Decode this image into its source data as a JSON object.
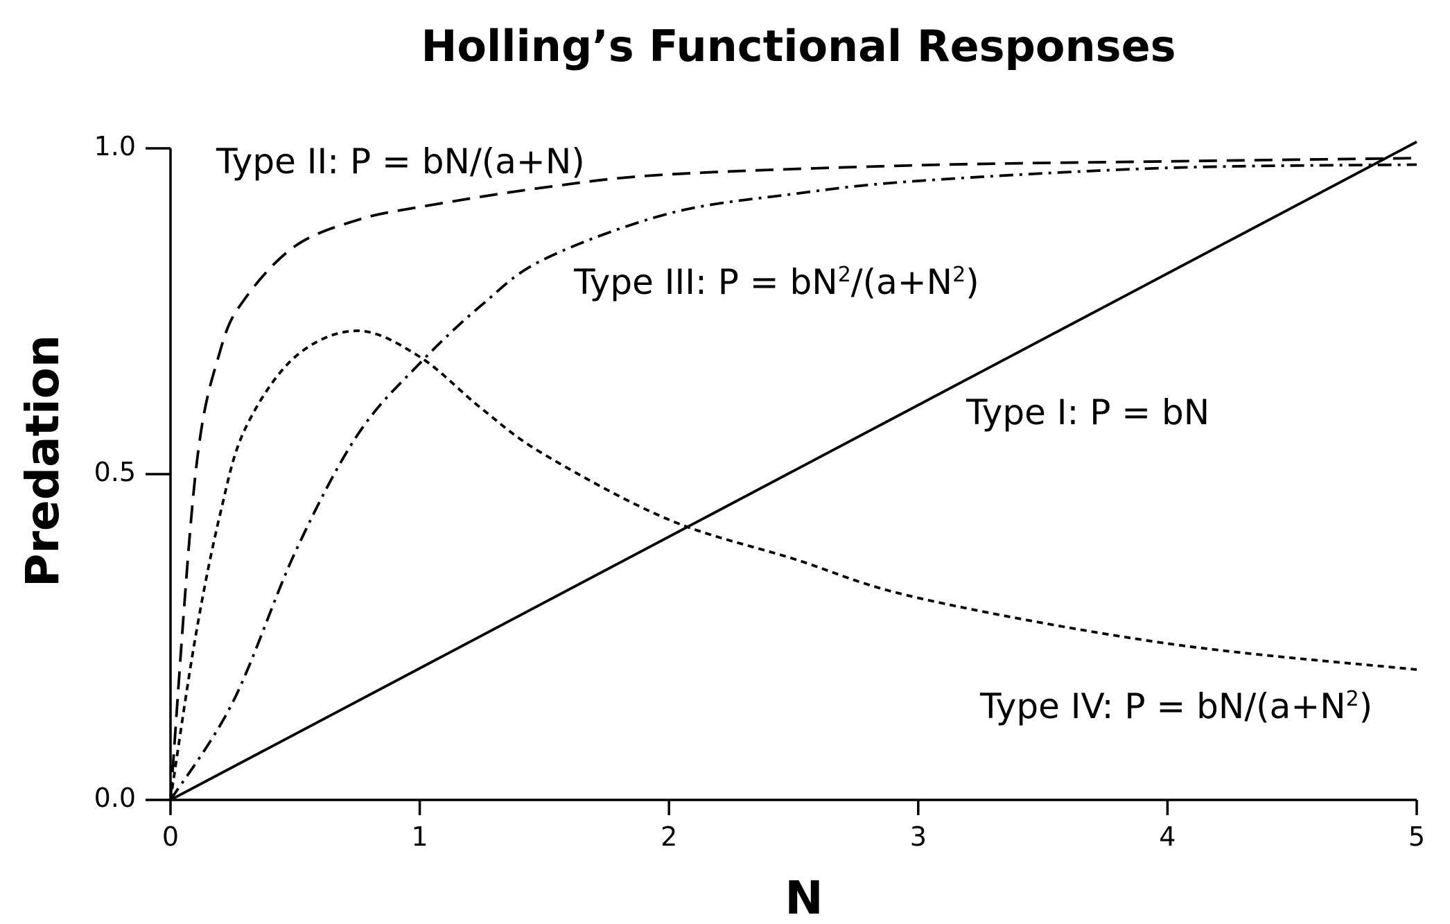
{
  "chart_data": {
    "type": "line",
    "title": "Holling’s Functional Responses",
    "xlabel": "N",
    "ylabel": "Predation",
    "xlim": [
      0,
      5
    ],
    "ylim": [
      0,
      1.0
    ],
    "x_ticks": [
      "0",
      "1",
      "2",
      "3",
      "4",
      "5"
    ],
    "y_ticks": [
      "0.0",
      "0.5",
      "1.0"
    ],
    "grid": false,
    "legend": "none",
    "series": [
      {
        "name": "Type I: P = bN",
        "style": "solid",
        "x": [
          0,
          5
        ],
        "y": [
          0,
          1.01
        ]
      },
      {
        "name": "Type II: P = bN/(a+N)",
        "style": "dashed",
        "x": [
          0,
          0.1,
          0.2,
          0.3,
          0.5,
          0.75,
          1.0,
          1.5,
          2.0,
          3.0,
          4.0,
          5.0
        ],
        "y": [
          0,
          0.5,
          0.69,
          0.77,
          0.85,
          0.89,
          0.91,
          0.94,
          0.96,
          0.974,
          0.98,
          0.985
        ]
      },
      {
        "name": "Type III: P = bN²/(a+N²)",
        "style": "dash-dot",
        "x": [
          0,
          0.25,
          0.5,
          0.75,
          1.0,
          1.25,
          1.5,
          2.0,
          2.5,
          3.0,
          4.0,
          5.0
        ],
        "y": [
          0,
          0.15,
          0.38,
          0.56,
          0.67,
          0.76,
          0.83,
          0.9,
          0.93,
          0.95,
          0.97,
          0.975
        ]
      },
      {
        "name": "Type IV: P = bN/(a+N²)",
        "style": "dotted",
        "x": [
          0,
          0.1,
          0.2,
          0.3,
          0.5,
          0.75,
          1.0,
          1.25,
          1.5,
          2.0,
          2.5,
          3.0,
          4.0,
          5.0
        ],
        "y": [
          0,
          0.25,
          0.44,
          0.57,
          0.68,
          0.72,
          0.68,
          0.6,
          0.53,
          0.43,
          0.37,
          0.31,
          0.24,
          0.2
        ]
      }
    ],
    "annotations": [
      {
        "text_main": "Type II: P = bN/(a+N)",
        "sup": []
      },
      {
        "text_main": "Type III: P = bN",
        "sup_1": "2",
        "mid": "/(a+N",
        "sup_2": "2",
        "end": ")"
      },
      {
        "text_main": "Type I: P = bN"
      },
      {
        "text_main": "Type IV: P = bN/(a+N",
        "sup_1": "2",
        "end": ")"
      }
    ]
  }
}
